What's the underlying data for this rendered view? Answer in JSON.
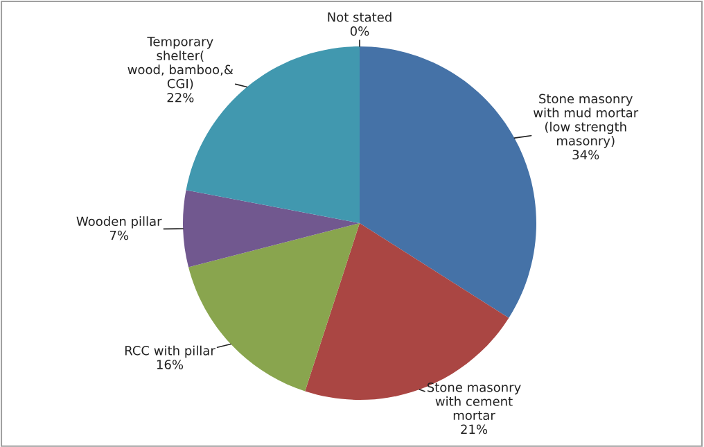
{
  "chart_data": {
    "type": "pie",
    "categories": [
      "Stone masonry\nwith mud mortar\n(low strength\nmasonry)",
      "Stone masonry\nwith cement\nmortar",
      "RCC with pillar",
      "Wooden pillar",
      "Temporary\nshelter(\nwood, bamboo,&\nCGI)",
      "Not stated"
    ],
    "values": [
      34,
      21,
      16,
      7,
      22,
      0
    ],
    "colors": [
      "#4572a7",
      "#aa4643",
      "#89a54e",
      "#71588f",
      "#4198af",
      "#db843d"
    ],
    "value_labels": [
      "34%",
      "21%",
      "16%",
      "7%",
      "22%",
      "0%"
    ],
    "legend": false
  }
}
